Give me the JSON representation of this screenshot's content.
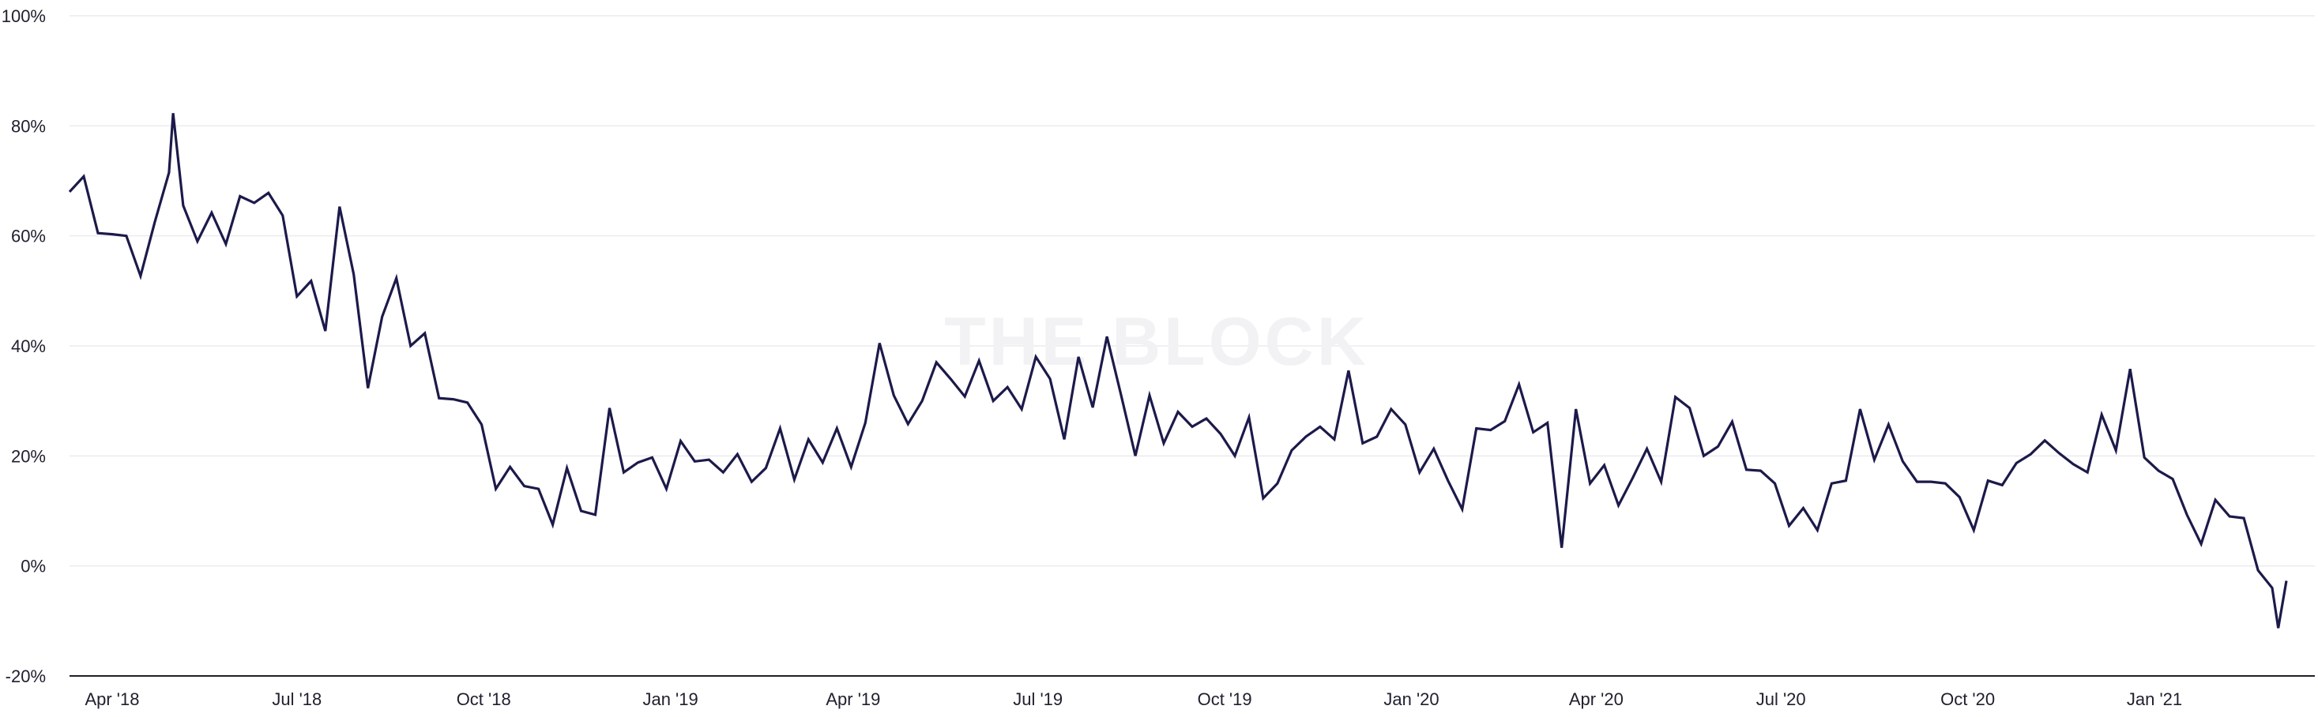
{
  "watermark": "THE BLOCK",
  "chart_data": {
    "type": "line",
    "title": "",
    "xlabel": "",
    "ylabel": "",
    "ylim": [
      -20,
      100
    ],
    "y_ticks": [
      {
        "value": -20,
        "label": "-20%"
      },
      {
        "value": 0,
        "label": "0%"
      },
      {
        "value": 20,
        "label": "20%"
      },
      {
        "value": 40,
        "label": "40%"
      },
      {
        "value": 60,
        "label": "60%"
      },
      {
        "value": 80,
        "label": "80%"
      },
      {
        "value": 100,
        "label": "100%"
      }
    ],
    "x_start": "2018-03-11",
    "x_end": "2021-03-21",
    "x_ticks": [
      {
        "date": "2018-04-01",
        "label": "Apr '18"
      },
      {
        "date": "2018-07-01",
        "label": "Jul '18"
      },
      {
        "date": "2018-10-01",
        "label": "Oct '18"
      },
      {
        "date": "2019-01-01",
        "label": "Jan '19"
      },
      {
        "date": "2019-04-01",
        "label": "Apr '19"
      },
      {
        "date": "2019-07-01",
        "label": "Jul '19"
      },
      {
        "date": "2019-10-01",
        "label": "Oct '19"
      },
      {
        "date": "2020-01-01",
        "label": "Jan '20"
      },
      {
        "date": "2020-04-01",
        "label": "Apr '20"
      },
      {
        "date": "2020-07-01",
        "label": "Jul '20"
      },
      {
        "date": "2020-10-01",
        "label": "Oct '20"
      },
      {
        "date": "2021-01-01",
        "label": "Jan '21"
      }
    ],
    "grid": true,
    "line_color": "#1c1a4a",
    "series": [
      {
        "name": "",
        "points": [
          [
            "2018-03-11",
            68.0
          ],
          [
            "2018-03-18",
            70.8
          ],
          [
            "2018-03-25",
            60.5
          ],
          [
            "2018-04-01",
            60.3
          ],
          [
            "2018-04-08",
            60.0
          ],
          [
            "2018-04-15",
            52.7
          ],
          [
            "2018-04-22",
            62.5
          ],
          [
            "2018-04-29",
            71.5
          ],
          [
            "2018-05-01",
            82.3
          ],
          [
            "2018-05-06",
            65.5
          ],
          [
            "2018-05-13",
            59.0
          ],
          [
            "2018-05-20",
            64.2
          ],
          [
            "2018-05-27",
            58.5
          ],
          [
            "2018-06-03",
            67.2
          ],
          [
            "2018-06-10",
            66.0
          ],
          [
            "2018-06-17",
            67.8
          ],
          [
            "2018-06-24",
            63.7
          ],
          [
            "2018-07-01",
            49.0
          ],
          [
            "2018-07-08",
            51.8
          ],
          [
            "2018-07-15",
            42.7
          ],
          [
            "2018-07-22",
            65.3
          ],
          [
            "2018-07-29",
            53.0
          ],
          [
            "2018-08-05",
            32.3
          ],
          [
            "2018-08-12",
            45.3
          ],
          [
            "2018-08-19",
            52.3
          ],
          [
            "2018-08-26",
            40.0
          ],
          [
            "2018-09-02",
            42.3
          ],
          [
            "2018-09-09",
            30.5
          ],
          [
            "2018-09-16",
            30.3
          ],
          [
            "2018-09-23",
            29.7
          ],
          [
            "2018-09-30",
            25.7
          ],
          [
            "2018-10-07",
            14.0
          ],
          [
            "2018-10-14",
            18.0
          ],
          [
            "2018-10-21",
            14.5
          ],
          [
            "2018-10-28",
            14.0
          ],
          [
            "2018-11-04",
            7.5
          ],
          [
            "2018-11-11",
            17.8
          ],
          [
            "2018-11-18",
            10.0
          ],
          [
            "2018-11-25",
            9.3
          ],
          [
            "2018-12-02",
            28.7
          ],
          [
            "2018-12-09",
            17.0
          ],
          [
            "2018-12-16",
            18.8
          ],
          [
            "2018-12-23",
            19.7
          ],
          [
            "2018-12-30",
            14.0
          ],
          [
            "2019-01-06",
            22.7
          ],
          [
            "2019-01-13",
            19.0
          ],
          [
            "2019-01-20",
            19.3
          ],
          [
            "2019-01-27",
            17.0
          ],
          [
            "2019-02-03",
            20.3
          ],
          [
            "2019-02-10",
            15.3
          ],
          [
            "2019-02-17",
            17.8
          ],
          [
            "2019-02-24",
            25.0
          ],
          [
            "2019-03-03",
            15.7
          ],
          [
            "2019-03-10",
            23.0
          ],
          [
            "2019-03-17",
            18.8
          ],
          [
            "2019-03-24",
            25.0
          ],
          [
            "2019-03-31",
            18.0
          ],
          [
            "2019-04-07",
            26.0
          ],
          [
            "2019-04-14",
            40.5
          ],
          [
            "2019-04-21",
            31.0
          ],
          [
            "2019-04-28",
            25.8
          ],
          [
            "2019-05-05",
            30.0
          ],
          [
            "2019-05-12",
            37.0
          ],
          [
            "2019-05-19",
            34.0
          ],
          [
            "2019-05-26",
            30.8
          ],
          [
            "2019-06-02",
            37.3
          ],
          [
            "2019-06-09",
            30.0
          ],
          [
            "2019-06-16",
            32.5
          ],
          [
            "2019-06-23",
            28.5
          ],
          [
            "2019-06-30",
            38.0
          ],
          [
            "2019-07-07",
            34.0
          ],
          [
            "2019-07-14",
            23.0
          ],
          [
            "2019-07-21",
            38.0
          ],
          [
            "2019-07-28",
            28.8
          ],
          [
            "2019-08-04",
            41.7
          ],
          [
            "2019-08-11",
            31.0
          ],
          [
            "2019-08-18",
            20.0
          ],
          [
            "2019-08-25",
            31.0
          ],
          [
            "2019-09-01",
            22.3
          ],
          [
            "2019-09-08",
            28.0
          ],
          [
            "2019-09-15",
            25.3
          ],
          [
            "2019-09-22",
            26.8
          ],
          [
            "2019-09-29",
            24.0
          ],
          [
            "2019-10-06",
            20.0
          ],
          [
            "2019-10-13",
            27.0
          ],
          [
            "2019-10-20",
            12.3
          ],
          [
            "2019-10-27",
            15.0
          ],
          [
            "2019-11-03",
            21.0
          ],
          [
            "2019-11-10",
            23.5
          ],
          [
            "2019-11-17",
            25.3
          ],
          [
            "2019-11-24",
            23.0
          ],
          [
            "2019-12-01",
            35.5
          ],
          [
            "2019-12-08",
            22.3
          ],
          [
            "2019-12-15",
            23.5
          ],
          [
            "2019-12-22",
            28.5
          ],
          [
            "2019-12-29",
            25.7
          ],
          [
            "2020-01-05",
            17.0
          ],
          [
            "2020-01-12",
            21.3
          ],
          [
            "2020-01-19",
            15.5
          ],
          [
            "2020-01-26",
            10.3
          ],
          [
            "2020-02-02",
            25.0
          ],
          [
            "2020-02-09",
            24.7
          ],
          [
            "2020-02-16",
            26.3
          ],
          [
            "2020-02-23",
            33.0
          ],
          [
            "2020-03-01",
            24.3
          ],
          [
            "2020-03-08",
            26.0
          ],
          [
            "2020-03-15",
            3.3
          ],
          [
            "2020-03-22",
            28.5
          ],
          [
            "2020-03-29",
            15.0
          ],
          [
            "2020-04-05",
            18.3
          ],
          [
            "2020-04-12",
            11.0
          ],
          [
            "2020-04-19",
            16.0
          ],
          [
            "2020-04-26",
            21.3
          ],
          [
            "2020-05-03",
            15.3
          ],
          [
            "2020-05-10",
            30.7
          ],
          [
            "2020-05-17",
            28.7
          ],
          [
            "2020-05-24",
            20.0
          ],
          [
            "2020-05-31",
            21.7
          ],
          [
            "2020-06-07",
            26.2
          ],
          [
            "2020-06-14",
            17.5
          ],
          [
            "2020-06-21",
            17.3
          ],
          [
            "2020-06-28",
            15.0
          ],
          [
            "2020-07-05",
            7.3
          ],
          [
            "2020-07-12",
            10.5
          ],
          [
            "2020-07-19",
            6.5
          ],
          [
            "2020-07-26",
            15.0
          ],
          [
            "2020-08-02",
            15.5
          ],
          [
            "2020-08-09",
            28.5
          ],
          [
            "2020-08-16",
            19.3
          ],
          [
            "2020-08-23",
            25.7
          ],
          [
            "2020-08-30",
            19.0
          ],
          [
            "2020-09-06",
            15.3
          ],
          [
            "2020-09-13",
            15.3
          ],
          [
            "2020-09-20",
            15.0
          ],
          [
            "2020-09-27",
            12.5
          ],
          [
            "2020-10-04",
            6.5
          ],
          [
            "2020-10-11",
            15.5
          ],
          [
            "2020-10-18",
            14.7
          ],
          [
            "2020-10-25",
            18.7
          ],
          [
            "2020-11-01",
            20.3
          ],
          [
            "2020-11-08",
            22.8
          ],
          [
            "2020-11-15",
            20.5
          ],
          [
            "2020-11-22",
            18.5
          ],
          [
            "2020-11-29",
            17.0
          ],
          [
            "2020-12-06",
            27.5
          ],
          [
            "2020-12-13",
            21.0
          ],
          [
            "2020-12-20",
            35.8
          ],
          [
            "2020-12-27",
            19.7
          ],
          [
            "2021-01-03",
            17.3
          ],
          [
            "2021-01-10",
            15.8
          ],
          [
            "2021-01-17",
            9.3
          ],
          [
            "2021-01-24",
            4.0
          ],
          [
            "2021-01-31",
            12.0
          ],
          [
            "2021-02-07",
            9.0
          ],
          [
            "2021-02-14",
            8.7
          ],
          [
            "2021-02-21",
            -0.8
          ],
          [
            "2021-02-28",
            -4.0
          ],
          [
            "2021-03-03",
            -11.3
          ],
          [
            "2021-03-07",
            -2.7
          ]
        ]
      }
    ]
  }
}
